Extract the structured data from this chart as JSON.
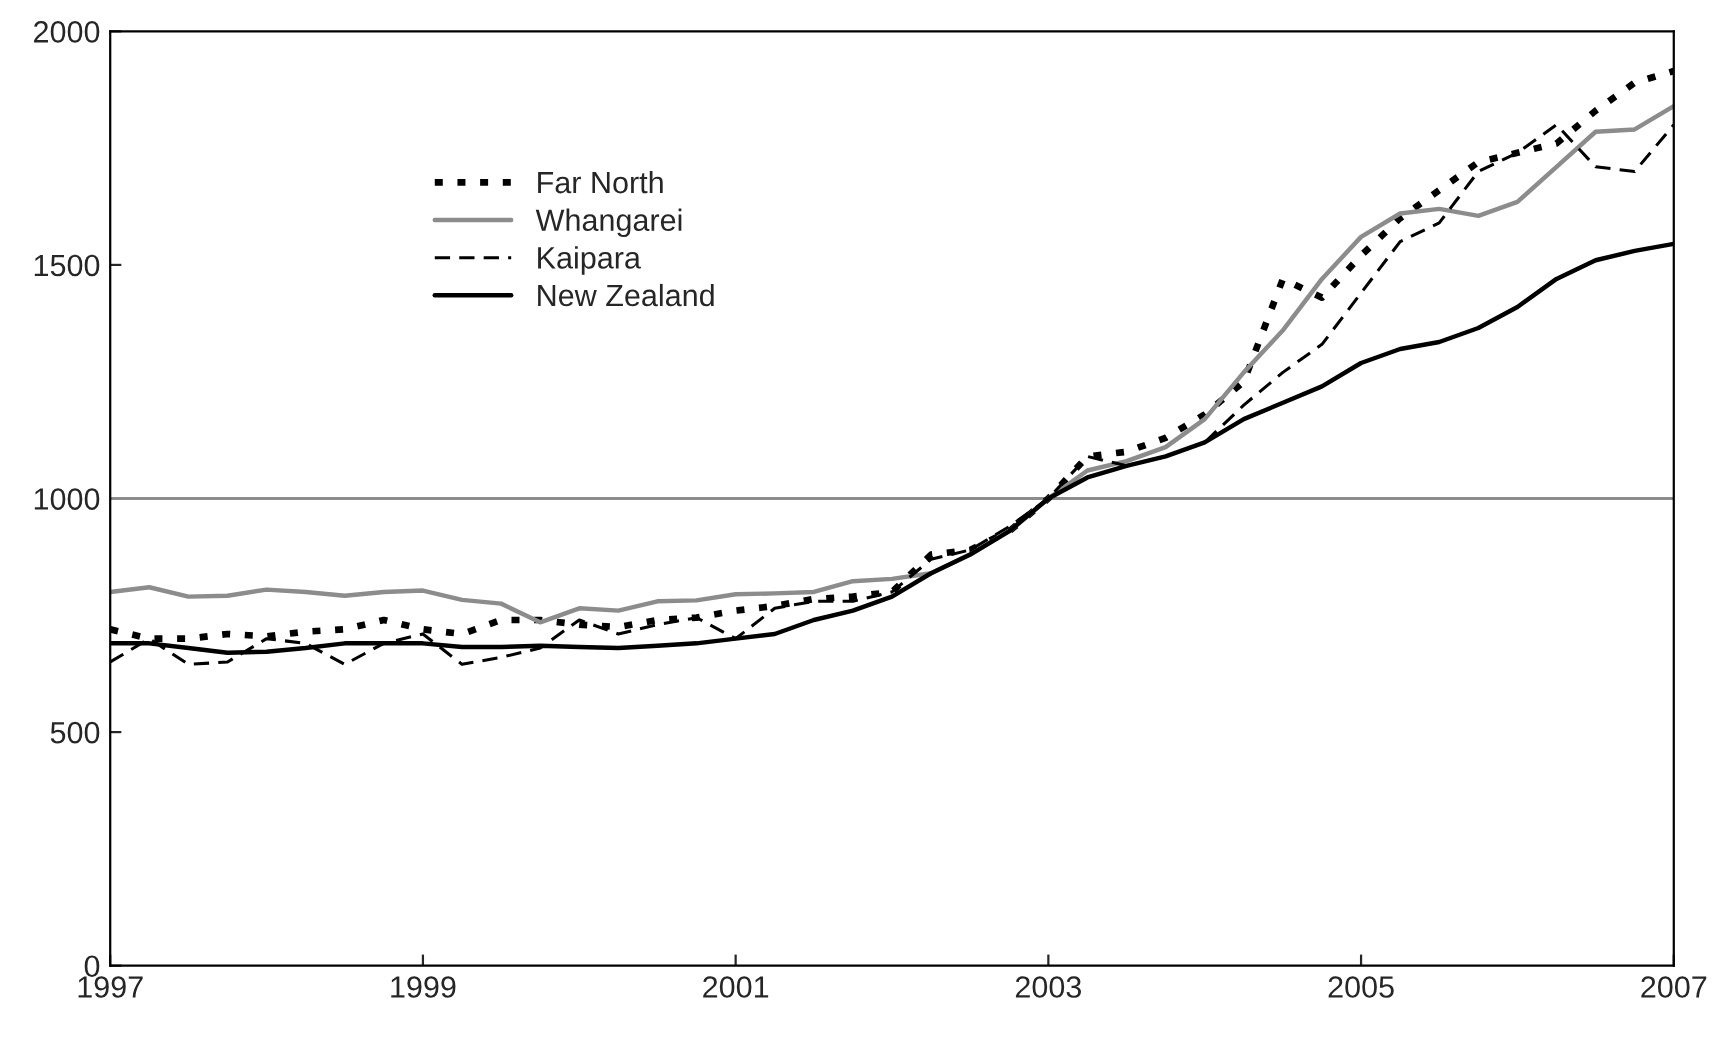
{
  "chart_data": {
    "type": "line",
    "x": [
      1997,
      1997.25,
      1997.5,
      1997.75,
      1998,
      1998.25,
      1998.5,
      1998.75,
      1999,
      1999.25,
      1999.5,
      1999.75,
      2000,
      2000.25,
      2000.5,
      2000.75,
      2001,
      2001.25,
      2001.5,
      2001.75,
      2002,
      2002.25,
      2002.5,
      2002.75,
      2003,
      2003.25,
      2003.5,
      2003.75,
      2004,
      2004.25,
      2004.5,
      2004.75,
      2005,
      2005.25,
      2005.5,
      2005.75,
      2006,
      2006.25,
      2006.5,
      2006.75,
      2007
    ],
    "series": [
      {
        "name": "Far North",
        "color": "#000000",
        "line_style": "dotted",
        "values": [
          720,
          700,
          700,
          710,
          705,
          715,
          720,
          740,
          720,
          710,
          740,
          740,
          730,
          725,
          740,
          745,
          760,
          770,
          785,
          790,
          800,
          880,
          890,
          930,
          1000,
          1090,
          1100,
          1130,
          1180,
          1250,
          1470,
          1430,
          1520,
          1600,
          1660,
          1720,
          1740,
          1760,
          1830,
          1890,
          1915
        ]
      },
      {
        "name": "Whangarei",
        "color": "#8c8c8c",
        "line_style": "solid",
        "values": [
          800,
          810,
          790,
          792,
          805,
          800,
          792,
          800,
          803,
          783,
          775,
          735,
          765,
          760,
          780,
          782,
          795,
          797,
          800,
          823,
          828,
          840,
          880,
          930,
          1000,
          1060,
          1080,
          1110,
          1170,
          1270,
          1360,
          1470,
          1560,
          1610,
          1620,
          1605,
          1635,
          1710,
          1785,
          1790,
          1840
        ]
      },
      {
        "name": "Kaipara",
        "color": "#000000",
        "line_style": "dashed",
        "values": [
          650,
          700,
          645,
          650,
          700,
          690,
          645,
          690,
          710,
          645,
          660,
          680,
          740,
          710,
          730,
          745,
          700,
          765,
          780,
          780,
          800,
          870,
          890,
          940,
          1000,
          1090,
          1070,
          1090,
          1120,
          1200,
          1270,
          1330,
          1440,
          1550,
          1590,
          1700,
          1740,
          1800,
          1710,
          1700,
          1800
        ]
      },
      {
        "name": "New Zealand",
        "color": "#000000",
        "line_style": "solid",
        "values": [
          690,
          690,
          680,
          670,
          672,
          680,
          690,
          690,
          690,
          682,
          682,
          685,
          682,
          680,
          685,
          690,
          700,
          710,
          740,
          760,
          790,
          840,
          880,
          930,
          1000,
          1045,
          1070,
          1090,
          1120,
          1170,
          1205,
          1240,
          1290,
          1320,
          1335,
          1365,
          1410,
          1470,
          1510,
          1530,
          1545
        ]
      }
    ],
    "xlim": [
      1997,
      2007
    ],
    "xticks": [
      1997,
      1999,
      2001,
      2003,
      2005,
      2007
    ],
    "ylim": [
      0,
      2000
    ],
    "yticks": [
      0,
      500,
      1000,
      1500,
      2000
    ],
    "ref_lines": [
      {
        "axis": "y",
        "value": 1000,
        "color": "#8c8c8c"
      }
    ],
    "legend": "top left",
    "grid": false
  }
}
